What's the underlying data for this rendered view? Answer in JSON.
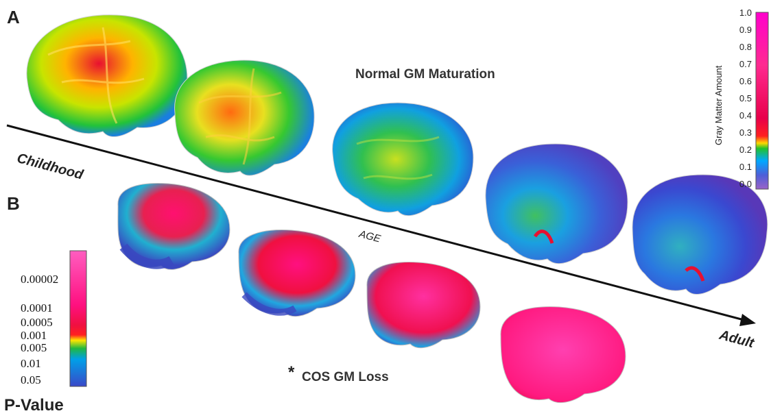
{
  "panels": {
    "a_label": "A",
    "b_label": "B"
  },
  "normal_title": "Normal GM Maturation",
  "cos_title": "COS GM Loss",
  "cos_marker": "*",
  "timeline": {
    "start_label": "Childhood",
    "mid_label": "AGE",
    "end_label": "Adult"
  },
  "gm_colorbar": {
    "title": "Gray Matter Amount",
    "ticks": [
      "1.0",
      "0.9",
      "0.8",
      "0.7",
      "0.6",
      "0.5",
      "0.4",
      "0.3",
      "0.2",
      "0.1",
      "0.0"
    ]
  },
  "p_colorbar": {
    "title": "P-Value",
    "ticks": [
      "0.00002",
      "0.0001",
      "0.0005",
      "0.001",
      "0.005",
      "0.01",
      "0.05"
    ]
  },
  "colors": {
    "gm_scale": [
      "#ff00cc",
      "#ff1a8c",
      "#e8004a",
      "#ffd800",
      "#22c22a",
      "#00a8ff",
      "#4d5fd8",
      "#9a62c8"
    ],
    "p_scale": [
      "#ff3fb0",
      "#ff0a6a",
      "#f0103a",
      "#ffe500",
      "#20b840",
      "#00a0e8",
      "#3a48c8"
    ],
    "axis": "#111111"
  }
}
